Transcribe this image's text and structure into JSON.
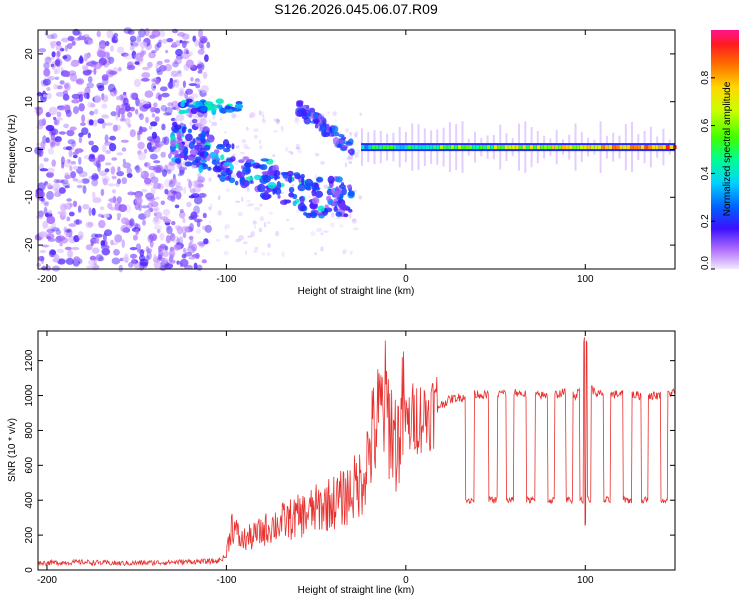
{
  "figure_title": "S126.2026.045.06.07.R09",
  "chart_data": [
    {
      "type": "heatmap",
      "name": "spectrogram",
      "title": "",
      "xlabel": "Height of straight line (km)",
      "ylabel": "Frequency (Hz)",
      "xlim": [
        -205,
        150
      ],
      "ylim": [
        -25,
        25
      ],
      "xticks": [
        -200,
        -100,
        0,
        100
      ],
      "yticks": [
        -20,
        -10,
        0,
        10,
        20
      ],
      "colorbar": {
        "label": "Normalized spectral amplitude",
        "range": [
          0,
          1
        ],
        "ticks": [
          "0.0",
          "0.2",
          "0.4",
          "0.6",
          "0.8"
        ],
        "tick_values": [
          0.0,
          0.2,
          0.4,
          0.6,
          0.8
        ]
      },
      "features": [
        {
          "name": "scattered noise",
          "x_range": [
            -205,
            -110
          ],
          "freq_range": [
            -25,
            25
          ],
          "amplitude": 0.1
        },
        {
          "name": "upper blob",
          "x_range": [
            -125,
            -92
          ],
          "freq_center": 9,
          "amplitude": 0.4
        },
        {
          "name": "diagonal streak",
          "x_range": [
            -130,
            -30
          ],
          "freq_start": 2,
          "freq_end": -10,
          "amplitude": 0.3
        },
        {
          "name": "upper streak",
          "x_range": [
            -60,
            -30
          ],
          "freq_start": 9,
          "freq_end": 0,
          "amplitude": 0.25
        },
        {
          "name": "carrier line",
          "x_range": [
            -25,
            150
          ],
          "freq": 0.5,
          "amplitude": 0.8
        }
      ]
    },
    {
      "type": "line",
      "name": "snr",
      "title": "",
      "xlabel": "Height of straight line (km)",
      "ylabel": "SNR (10 * v/v)",
      "xlim": [
        -205,
        150
      ],
      "ylim": [
        0,
        1370
      ],
      "xticks": [
        -200,
        -100,
        0,
        100
      ],
      "yticks": [
        0,
        200,
        400,
        600,
        800,
        1000,
        1200
      ],
      "color": "#e8312f",
      "series": [
        {
          "name": "SNR",
          "x": [
            -205,
            -180,
            -160,
            -140,
            -120,
            -105,
            -100,
            -97,
            -92,
            -85,
            -75,
            -65,
            -55,
            -45,
            -35,
            -25,
            -18,
            -12,
            -5,
            0,
            5,
            10,
            15,
            20,
            25,
            30,
            35,
            40,
            45,
            50,
            60,
            70,
            80,
            90,
            95,
            100,
            105,
            110,
            120,
            130,
            140,
            150
          ],
          "values": [
            40,
            45,
            38,
            42,
            48,
            50,
            80,
            220,
            140,
            160,
            210,
            240,
            270,
            310,
            340,
            420,
            650,
            800,
            600,
            820,
            880,
            880,
            920,
            950,
            980,
            990,
            1000,
            1010,
            1000,
            1010,
            1020,
            1000,
            1000,
            1020,
            1000,
            1100,
            1020,
            1000,
            1010,
            1000,
            1000,
            1020
          ]
        }
      ],
      "dropouts": [
        {
          "x": [
            33,
            38
          ],
          "level": 400
        },
        {
          "x": [
            46,
            51
          ],
          "level": 400
        },
        {
          "x": [
            56,
            60
          ],
          "level": 400
        },
        {
          "x": [
            67,
            72
          ],
          "level": 400
        },
        {
          "x": [
            79,
            83
          ],
          "level": 400
        },
        {
          "x": [
            89,
            93
          ],
          "level": 400
        },
        {
          "x": [
            97,
            103
          ],
          "level": 400
        },
        {
          "x": [
            110,
            114
          ],
          "level": 400
        },
        {
          "x": [
            121,
            126
          ],
          "level": 400
        },
        {
          "x": [
            131,
            135
          ],
          "level": 400
        },
        {
          "x": [
            142,
            146
          ],
          "level": 400
        }
      ]
    }
  ]
}
